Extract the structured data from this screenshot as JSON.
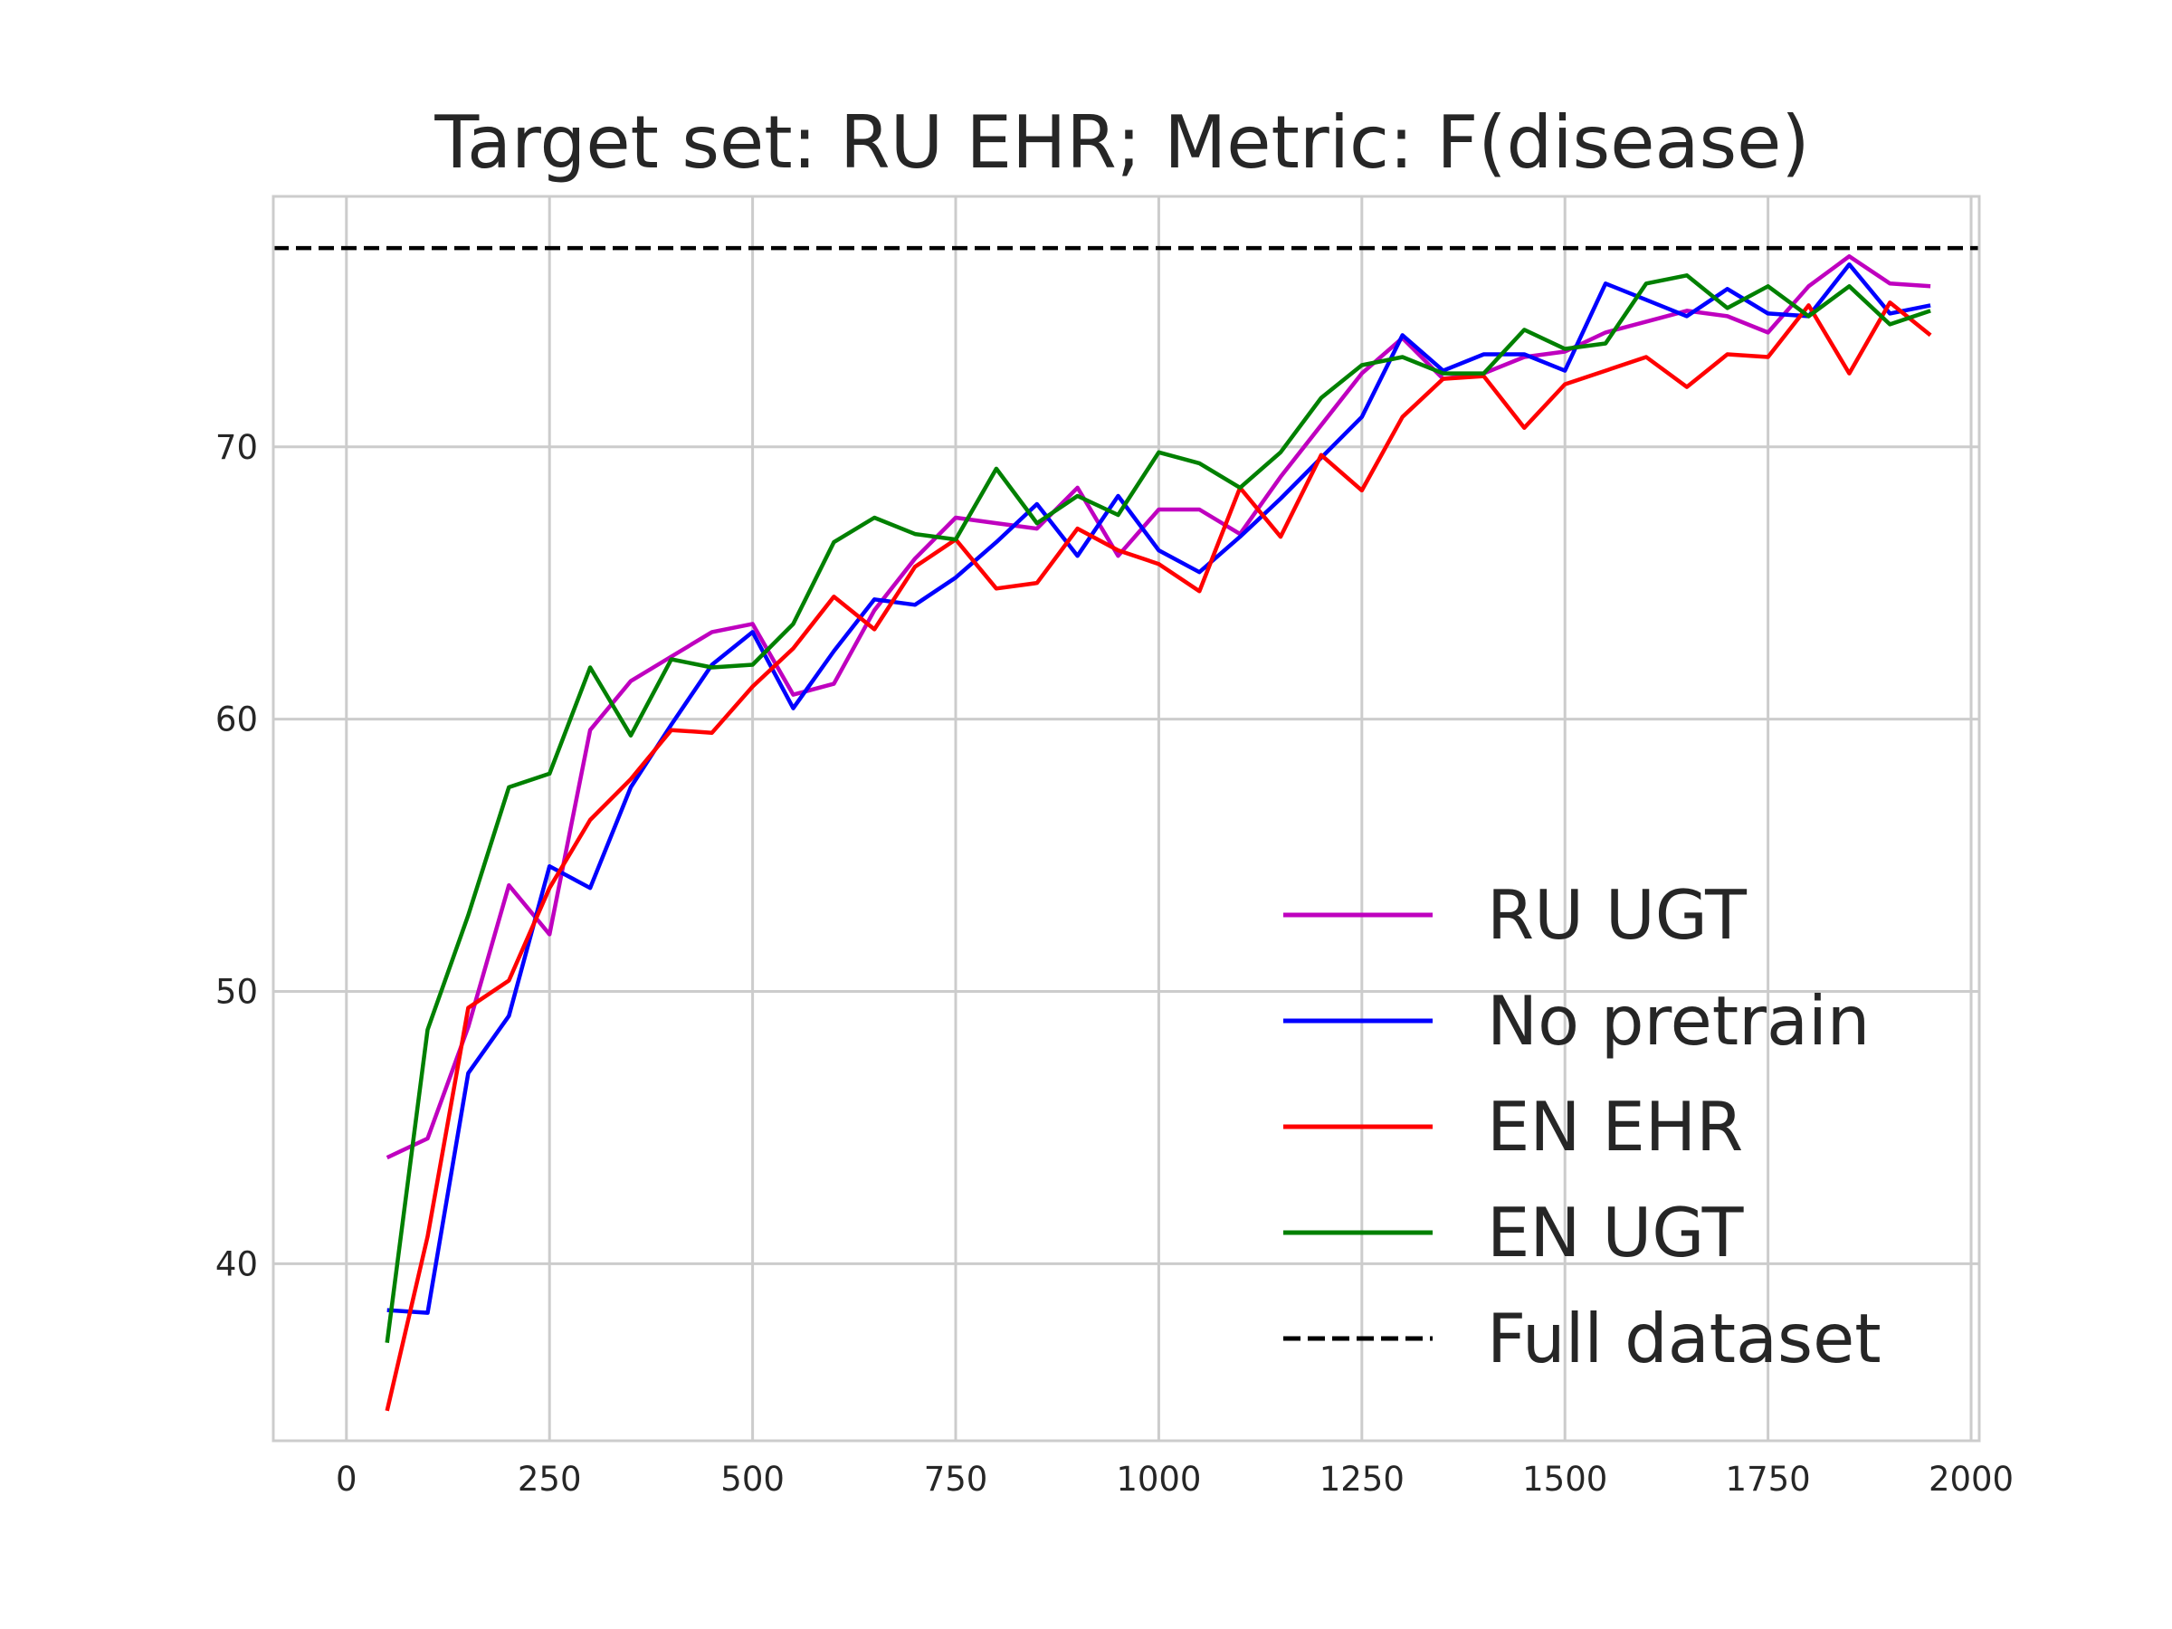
{
  "chart_data": {
    "type": "line",
    "title": "Target set: RU EHR; Metric: F(disease)",
    "xlabel": "",
    "ylabel": "",
    "xlim": [
      -90,
      2010
    ],
    "ylim": [
      33.5,
      79.2
    ],
    "xticks": [
      0,
      250,
      500,
      750,
      1000,
      1250,
      1500,
      1750,
      2000
    ],
    "yticks": [
      40,
      50,
      60,
      70
    ],
    "grid": true,
    "legend_position": "lower-right",
    "x": [
      50,
      100,
      150,
      200,
      250,
      300,
      350,
      400,
      450,
      500,
      550,
      600,
      650,
      700,
      750,
      800,
      850,
      900,
      950,
      1000,
      1050,
      1100,
      1150,
      1200,
      1250,
      1300,
      1350,
      1400,
      1450,
      1500,
      1550,
      1600,
      1650,
      1700,
      1750,
      1800,
      1850,
      1900,
      1950
    ],
    "series": [
      {
        "name": "RU UGT",
        "color": "#bf00bf",
        "style": "solid",
        "values": [
          43.9,
          44.6,
          48.7,
          53.9,
          52.1,
          59.6,
          61.4,
          62.3,
          63.2,
          63.5,
          60.9,
          61.3,
          64.0,
          65.9,
          67.4,
          67.2,
          67.0,
          68.5,
          66.0,
          67.7,
          67.7,
          66.8,
          68.9,
          70.8,
          72.7,
          74.0,
          72.5,
          72.7,
          73.3,
          73.5,
          74.2,
          74.6,
          75.0,
          74.8,
          74.2,
          75.9,
          77.0,
          76.0,
          75.9
        ]
      },
      {
        "name": "No pretrain",
        "color": "#0000ff",
        "style": "solid",
        "values": [
          38.3,
          38.2,
          47.0,
          49.1,
          54.6,
          53.8,
          57.5,
          59.8,
          62.0,
          63.2,
          60.4,
          62.5,
          64.4,
          64.2,
          65.2,
          66.5,
          67.9,
          66.0,
          68.2,
          66.2,
          65.4,
          66.7,
          68.1,
          69.6,
          71.1,
          74.1,
          72.8,
          73.4,
          73.4,
          72.8,
          76.0,
          75.4,
          74.8,
          75.8,
          74.9,
          74.8,
          76.7,
          74.9,
          75.2
        ]
      },
      {
        "name": "EN EHR",
        "color": "#ff0000",
        "style": "solid",
        "values": [
          34.6,
          41.0,
          49.4,
          50.4,
          53.8,
          56.3,
          57.8,
          59.6,
          59.5,
          61.2,
          62.6,
          64.5,
          63.3,
          65.6,
          66.6,
          64.8,
          65.0,
          67.0,
          66.2,
          65.7,
          64.7,
          68.5,
          66.7,
          69.7,
          68.4,
          71.1,
          72.5,
          72.6,
          70.7,
          72.3,
          72.8,
          73.3,
          72.2,
          73.4,
          73.3,
          75.2,
          72.7,
          75.3,
          74.1
        ]
      },
      {
        "name": "EN UGT",
        "color": "#008000",
        "style": "solid",
        "values": [
          37.1,
          48.6,
          52.8,
          57.5,
          58.0,
          61.9,
          59.4,
          62.2,
          61.9,
          62.0,
          63.5,
          66.5,
          67.4,
          66.8,
          66.6,
          69.2,
          67.2,
          68.2,
          67.5,
          69.8,
          69.4,
          68.5,
          69.8,
          71.8,
          73.0,
          73.3,
          72.7,
          72.7,
          74.3,
          73.6,
          73.8,
          76.0,
          76.3,
          75.1,
          75.9,
          74.8,
          75.9,
          74.5,
          75.0
        ]
      },
      {
        "name": "Full dataset",
        "color": "#000000",
        "style": "dashed",
        "constant": 77.3
      }
    ]
  }
}
